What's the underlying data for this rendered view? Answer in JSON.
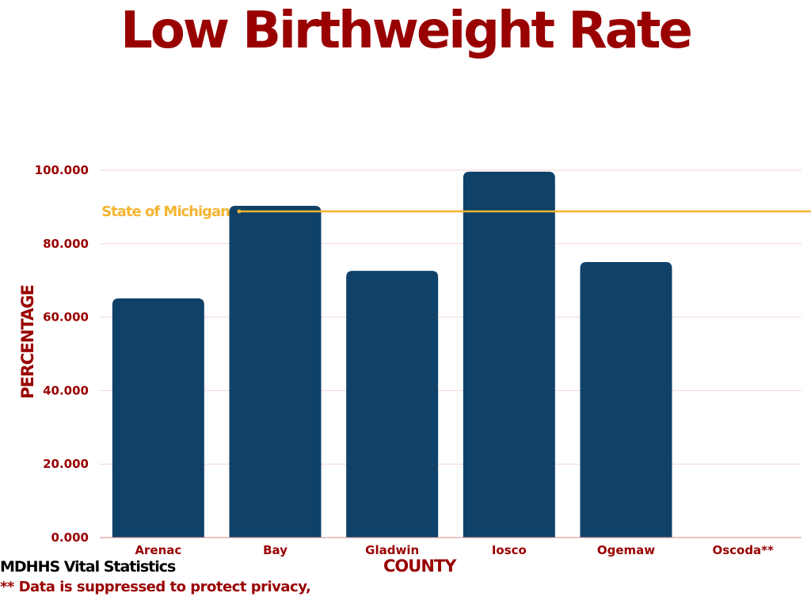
{
  "chart_data": {
    "type": "bar",
    "title": "Low Birthweight Rate",
    "xlabel": "COUNTY",
    "ylabel": "PERCENTAGE",
    "categories": [
      "Arenac",
      "Bay",
      "Gladwin",
      "Iosco",
      "Ogemaw",
      "Oscoda**"
    ],
    "values": [
      65.1,
      90.3,
      72.6,
      99.6,
      75.0,
      null
    ],
    "ylim": [
      0,
      100
    ],
    "yticks": [
      0,
      20,
      40,
      60,
      80,
      100
    ],
    "ytick_labels": [
      "0.000",
      "20.000",
      "40.000",
      "60.000",
      "80.000",
      "100.000"
    ],
    "grid": true,
    "reference_line": {
      "label": "State of Michigan",
      "value": 88.8,
      "color": "#f4b532"
    },
    "bar_color": "#0f4169",
    "text_color": "#990000",
    "gridline_color": "#f2d6d6"
  },
  "footer": {
    "source": "MDHHS Vital Statistics",
    "note": "** Data is suppressed to protect privacy,"
  }
}
